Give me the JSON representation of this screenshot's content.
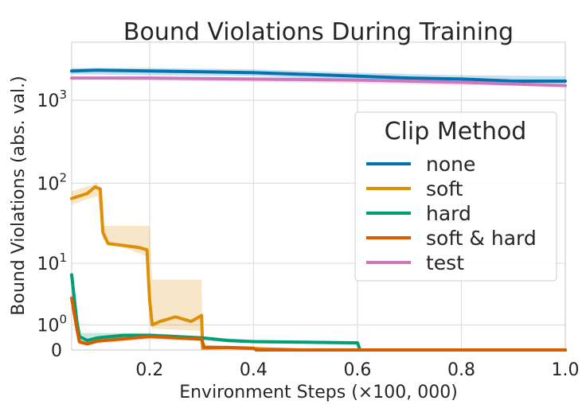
{
  "chart_data": {
    "type": "line",
    "title": "Bound Violations During Training",
    "xlabel": "Environment Steps (×100, 000)",
    "ylabel": "Bound Violations (abs. val.)",
    "xlim": [
      0.05,
      1.0
    ],
    "ylim": [
      0,
      5000
    ],
    "yscale": "symlog",
    "grid": true,
    "x_ticks": [
      {
        "value": 0.2,
        "label": "0.2"
      },
      {
        "value": 0.4,
        "label": "0.4"
      },
      {
        "value": 0.6,
        "label": "0.6"
      },
      {
        "value": 0.8,
        "label": "0.8"
      },
      {
        "value": 1.0,
        "label": "1.0"
      }
    ],
    "y_ticks": [
      {
        "value": 0,
        "base": "0",
        "exp": ""
      },
      {
        "value": 1,
        "base": "10",
        "exp": "0"
      },
      {
        "value": 10,
        "base": "10",
        "exp": "1"
      },
      {
        "value": 100,
        "base": "10",
        "exp": "2"
      },
      {
        "value": 1000,
        "base": "10",
        "exp": "3"
      }
    ],
    "legend": {
      "title": "Clip Method",
      "position": "center-right"
    },
    "series": [
      {
        "name": "none",
        "color": "#0173b2",
        "points": [
          [
            0.05,
            2250
          ],
          [
            0.1,
            2300
          ],
          [
            0.2,
            2250
          ],
          [
            0.3,
            2200
          ],
          [
            0.4,
            2150
          ],
          [
            0.5,
            2050
          ],
          [
            0.6,
            1950
          ],
          [
            0.7,
            1850
          ],
          [
            0.8,
            1800
          ],
          [
            0.9,
            1700
          ],
          [
            1.0,
            1700
          ]
        ],
        "band": [
          [
            0.05,
            2050,
            2450
          ],
          [
            0.2,
            2000,
            2450
          ],
          [
            0.4,
            1950,
            2350
          ],
          [
            0.6,
            1750,
            2150
          ],
          [
            0.8,
            1600,
            2000
          ],
          [
            1.0,
            1500,
            1950
          ]
        ]
      },
      {
        "name": "soft",
        "color": "#de8f05",
        "points": [
          [
            0.05,
            65
          ],
          [
            0.08,
            75
          ],
          [
            0.095,
            90
          ],
          [
            0.105,
            85
          ],
          [
            0.11,
            25
          ],
          [
            0.12,
            18
          ],
          [
            0.15,
            17
          ],
          [
            0.18,
            16
          ],
          [
            0.195,
            15
          ],
          [
            0.2,
            3
          ],
          [
            0.205,
            1.0
          ],
          [
            0.22,
            1.2
          ],
          [
            0.25,
            1.5
          ],
          [
            0.28,
            1.2
          ],
          [
            0.3,
            1.6
          ],
          [
            0.302,
            0.05
          ],
          [
            0.35,
            0.07
          ],
          [
            0.4,
            0.04
          ],
          [
            0.5,
            0
          ],
          [
            1.0,
            0
          ]
        ],
        "band": [
          [
            0.05,
            55,
            80
          ],
          [
            0.1,
            70,
            100
          ],
          [
            0.11,
            20,
            30
          ],
          [
            0.2,
            12,
            30
          ],
          [
            0.205,
            0.8,
            6
          ],
          [
            0.3,
            0.7,
            6
          ],
          [
            0.302,
            0.02,
            0.12
          ],
          [
            0.4,
            0.01,
            0.1
          ],
          [
            0.5,
            0,
            0
          ]
        ]
      },
      {
        "name": "hard",
        "color": "#029e73",
        "points": [
          [
            0.05,
            7
          ],
          [
            0.06,
            1.2
          ],
          [
            0.065,
            0.45
          ],
          [
            0.08,
            0.3
          ],
          [
            0.1,
            0.4
          ],
          [
            0.15,
            0.5
          ],
          [
            0.2,
            0.5
          ],
          [
            0.25,
            0.45
          ],
          [
            0.3,
            0.4
          ],
          [
            0.35,
            0.3
          ],
          [
            0.4,
            0.26
          ],
          [
            0.5,
            0.24
          ],
          [
            0.59,
            0.22
          ],
          [
            0.6,
            0.22
          ],
          [
            0.605,
            0
          ],
          [
            1.0,
            0
          ]
        ],
        "band": [
          [
            0.06,
            0.3,
            0.6
          ],
          [
            0.2,
            0.4,
            0.6
          ],
          [
            0.4,
            0.2,
            0.32
          ],
          [
            0.6,
            0.18,
            0.26
          ]
        ]
      },
      {
        "name": "soft & hard",
        "color": "#d55e00",
        "points": [
          [
            0.05,
            3.2
          ],
          [
            0.06,
            0.8
          ],
          [
            0.065,
            0.25
          ],
          [
            0.08,
            0.18
          ],
          [
            0.1,
            0.28
          ],
          [
            0.15,
            0.36
          ],
          [
            0.2,
            0.45
          ],
          [
            0.25,
            0.4
          ],
          [
            0.3,
            0.35
          ],
          [
            0.305,
            0.08
          ],
          [
            0.35,
            0.07
          ],
          [
            0.4,
            0.05
          ],
          [
            0.405,
            0
          ],
          [
            1.0,
            0
          ]
        ],
        "band": [
          [
            0.065,
            0.15,
            0.32
          ],
          [
            0.2,
            0.35,
            0.55
          ],
          [
            0.3,
            0.28,
            0.42
          ],
          [
            0.305,
            0.04,
            0.12
          ],
          [
            0.4,
            0.02,
            0.08
          ]
        ]
      },
      {
        "name": "test",
        "color": "#cc78bc",
        "points": [
          [
            0.05,
            1850
          ],
          [
            0.2,
            1850
          ],
          [
            0.4,
            1800
          ],
          [
            0.6,
            1750
          ],
          [
            0.8,
            1650
          ],
          [
            1.0,
            1500
          ]
        ],
        "band": [
          [
            0.05,
            1800,
            1900
          ],
          [
            1.0,
            1450,
            1550
          ]
        ]
      }
    ]
  }
}
